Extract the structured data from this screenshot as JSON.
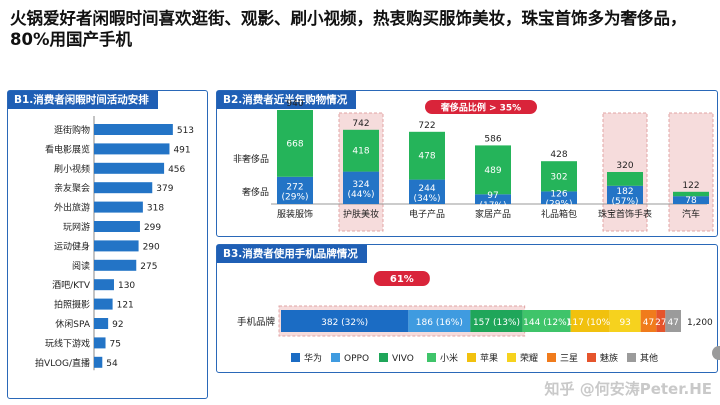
{
  "headline": "火锅爱好者闲暇时间喜欢逛街、观影、刷小视频，热衷购买服饰美妆，珠宝首饰多为奢侈品，80%用国产手机",
  "watermark": "知乎 @何安涛Peter.HE",
  "colors": {
    "header_blue": "#1f5fb5",
    "bar_blue": "#2374c6",
    "green": "#25b45a",
    "badge_red": "#d9243a",
    "highlight_pink": "#f6dcdc"
  },
  "chart_data": [
    {
      "type": "bar",
      "orientation": "horizontal",
      "title": "B1.消费者闲暇时间活动安排",
      "categories": [
        "逛街购物",
        "看电影展览",
        "刷小视频",
        "亲友聚会",
        "外出旅游",
        "玩网游",
        "运动健身",
        "阅读",
        "酒吧/KTV",
        "拍照摄影",
        "休闲SPA",
        "玩线下游戏",
        "拍VLOG/直播"
      ],
      "values": [
        513,
        491,
        456,
        379,
        318,
        299,
        290,
        275,
        130,
        121,
        92,
        75,
        54
      ],
      "xlim": [
        0,
        540
      ]
    },
    {
      "type": "bar",
      "stacked": true,
      "title": "B2.消费者近半年购物情况",
      "badge": "奢侈品比例 > 35%",
      "categories": [
        "服装服饰",
        "护肤美妆",
        "电子产品",
        "家居产品",
        "礼品箱包",
        "珠宝首饰手表",
        "汽车"
      ],
      "totals": [
        "940",
        "742",
        "722",
        "586",
        "428",
        "320",
        "122"
      ],
      "series": [
        {
          "name": "奢侈品",
          "values": [
            272,
            324,
            244,
            97,
            126,
            182,
            78
          ],
          "labels": [
            "272",
            "324",
            "244",
            "97",
            "126",
            "182",
            "78"
          ],
          "pct": [
            "(29%)",
            "(44%)",
            "(34%)",
            "(17%)",
            "(29%)",
            "(57%)",
            ""
          ]
        },
        {
          "name": "非奢侈品",
          "values": [
            668,
            418,
            478,
            489,
            302,
            138,
            44
          ],
          "labels": [
            "668",
            "418",
            "478",
            "489",
            "302",
            "",
            ""
          ]
        }
      ],
      "highlighted": [
        "护肤美妆",
        "珠宝首饰手表",
        "汽车"
      ],
      "ylim": [
        0,
        960
      ]
    },
    {
      "type": "bar",
      "stacked": true,
      "orientation": "horizontal",
      "title": "B3.消费者使用手机品牌情况",
      "badge": "61%",
      "category": "手机品牌",
      "total_label": "1,200",
      "series": [
        {
          "name": "华为",
          "value": 382,
          "label": "382 (32%)"
        },
        {
          "name": "OPPO",
          "value": 186,
          "label": "186 (16%)"
        },
        {
          "name": "VIVO",
          "value": 157,
          "label": "157 (13%)"
        },
        {
          "name": "小米",
          "value": 144,
          "label": "144 (12%)"
        },
        {
          "name": "苹果",
          "value": 117,
          "label": "117 (10%)"
        },
        {
          "name": "荣耀",
          "value": 93,
          "label": "93"
        },
        {
          "name": "三星",
          "value": 47,
          "label": "47"
        },
        {
          "name": "魅族",
          "value": 27,
          "label": "27"
        },
        {
          "name": "其他",
          "value": 47,
          "label": "47"
        }
      ],
      "series_colors": [
        "#1b6cc4",
        "#3f9be0",
        "#1fa65a",
        "#3fc46a",
        "#f1c10e",
        "#f6d21e",
        "#f07b1c",
        "#e5542c",
        "#9b9b9b"
      ]
    }
  ]
}
